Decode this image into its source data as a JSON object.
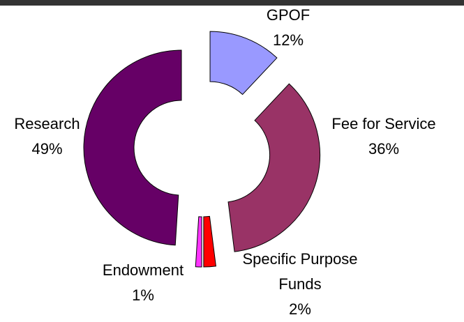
{
  "chart_data": {
    "type": "donut",
    "categories": [
      "GPOF",
      "Fee for Service",
      "Specific Purpose Funds",
      "Endowment",
      "Research"
    ],
    "values": [
      12,
      36,
      2,
      1,
      49
    ],
    "value_labels": [
      "12%",
      "36%",
      "2%",
      "1%",
      "49%"
    ],
    "colors": [
      "#9999ff",
      "#993366",
      "#ff0000",
      "#ff33ff",
      "#660066"
    ]
  }
}
